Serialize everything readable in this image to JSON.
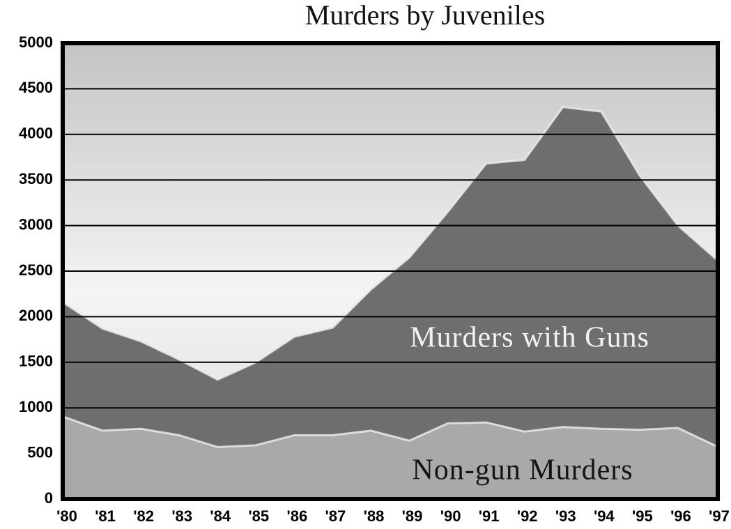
{
  "chart_data": {
    "type": "stacked_area",
    "title": "Murders by Juveniles",
    "categories": [
      "'80",
      "'81",
      "'82",
      "'83",
      "'84",
      "'85",
      "'86",
      "'87",
      "'88",
      "'89",
      "'90",
      "'91",
      "'92",
      "'93",
      "'94",
      "'95",
      "'96",
      "'97"
    ],
    "series": [
      {
        "name": "Non-gun Murders",
        "color": "#a9a9a9",
        "values": [
          900,
          750,
          770,
          700,
          570,
          590,
          700,
          700,
          750,
          640,
          830,
          840,
          740,
          790,
          770,
          760,
          780,
          580
        ]
      },
      {
        "name": "Murders with Guns",
        "color": "#6e6e6e",
        "values": [
          1250,
          1120,
          960,
          830,
          740,
          910,
          1080,
          1180,
          1550,
          2010,
          2320,
          2840,
          2980,
          3510,
          3480,
          2790,
          2220,
          2050
        ]
      }
    ],
    "ylim": [
      0,
      5000
    ],
    "yticks": [
      0,
      500,
      1000,
      1500,
      2000,
      2500,
      3000,
      3500,
      4000,
      4500,
      5000
    ],
    "grid": true
  }
}
